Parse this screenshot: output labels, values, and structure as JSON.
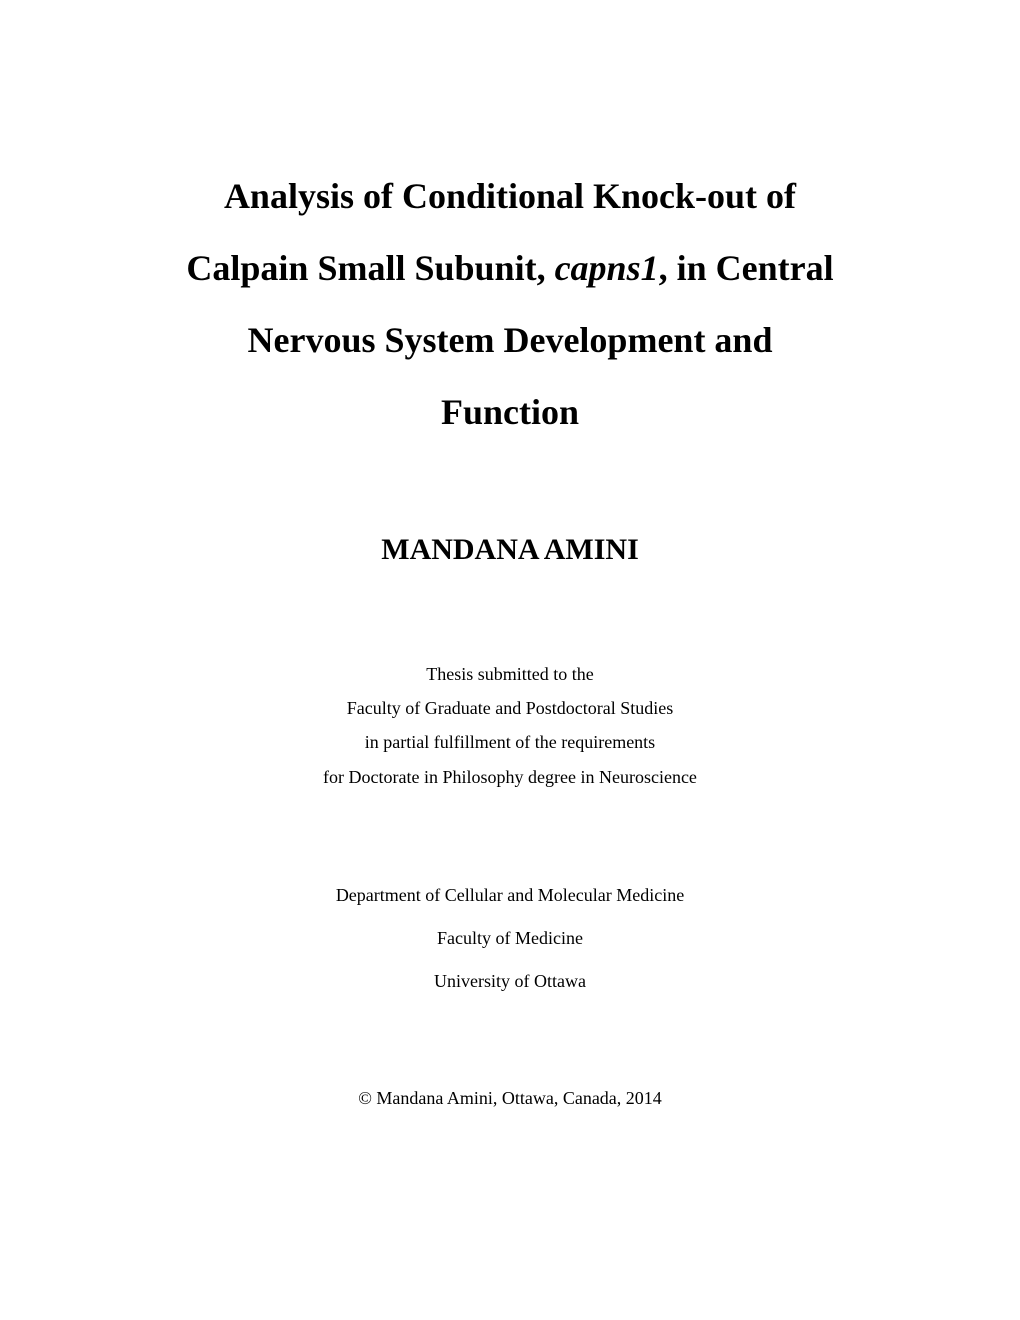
{
  "title": {
    "line1_part1": "Analysis of Conditional Knock-out of",
    "line2_part1": "Calpain Small Subunit, ",
    "line2_italic": "capns1",
    "line2_part2": ", in Central",
    "line3": "Nervous System Development and",
    "line4": "Function"
  },
  "author": {
    "name": "MANDANA AMINI"
  },
  "submission": {
    "line1": "Thesis submitted to the",
    "line2": "Faculty of Graduate and Postdoctoral Studies",
    "line3": "in partial fulfillment of the requirements",
    "line4": "for Doctorate in Philosophy degree in Neuroscience"
  },
  "department": {
    "line1": "Department of Cellular and Molecular Medicine",
    "line2": "Faculty of Medicine",
    "line3": "University of Ottawa"
  },
  "copyright": {
    "text": "© Mandana Amini, Ottawa, Canada, 2014"
  }
}
